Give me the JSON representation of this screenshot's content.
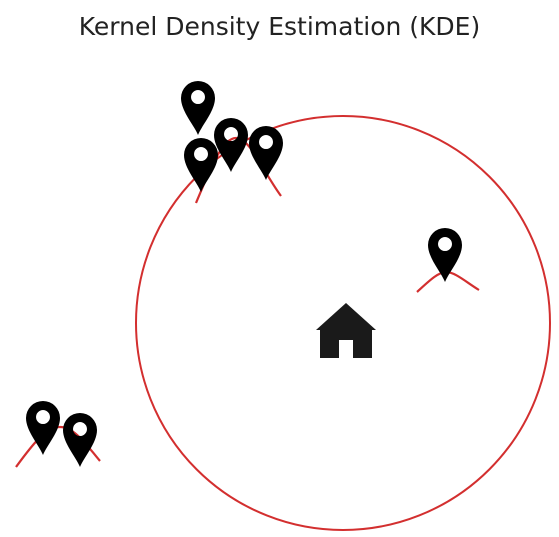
{
  "title": "Kernel Density Estimation (KDE)",
  "colors": {
    "kernel": "#d32f2f",
    "radius_circle": "#d32f2f",
    "marker": "#000000",
    "house": "#1a1a1a",
    "background": "#ffffff",
    "title": "#222222"
  },
  "icons": {
    "marker": "map-pin-icon",
    "center": "house-icon"
  },
  "diagram": {
    "bandwidth_circle": "large circle centered on the house",
    "points": 7,
    "clusters": 3
  }
}
